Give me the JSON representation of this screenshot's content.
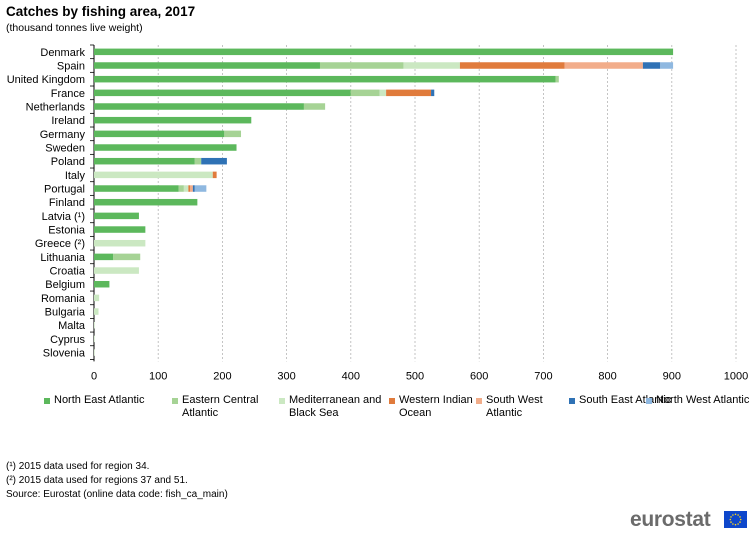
{
  "title": "Catches by fishing area, 2017",
  "subtitle": "(thousand tonnes live weight)",
  "legend": [
    {
      "label": "North East Atlantic",
      "color": "#5cb85c"
    },
    {
      "label": "Eastern Central Atlantic",
      "color": "#a6d395"
    },
    {
      "label": "Mediterranean and Black Sea",
      "color": "#cbe8c2"
    },
    {
      "label": "Western Indian Ocean",
      "color": "#e07b3c"
    },
    {
      "label": "South West Atlantic",
      "color": "#f2ad8a"
    },
    {
      "label": "South East Atlantic",
      "color": "#2f72b5"
    },
    {
      "label": "North West Atlantic",
      "color": "#8fb8e0"
    }
  ],
  "notes": [
    "(¹) 2015 data used for region 34.",
    "(²) 2015 data used for regions 37 and 51.",
    "Source: Eurostat (online data code: fish_ca_main)"
  ],
  "logo": {
    "text": "eurostat",
    "icon": "eu-flag-icon"
  },
  "chart_data": {
    "type": "bar",
    "orientation": "horizontal",
    "stacked": true,
    "title": "Catches by fishing area, 2017",
    "subtitle": "(thousand tonnes live weight)",
    "xlim": [
      0,
      1000
    ],
    "xticks": [
      0,
      100,
      200,
      300,
      400,
      500,
      600,
      700,
      800,
      900,
      1000
    ],
    "grid": "vertical dashed",
    "legend_position": "bottom",
    "categories": [
      "Denmark",
      "Spain",
      "United Kingdom",
      "France",
      "Netherlands",
      "Ireland",
      "Germany",
      "Sweden",
      "Poland",
      "Italy",
      "Portugal",
      "Finland",
      "Latvia (¹)",
      "Estonia",
      "Greece (²)",
      "Lithuania",
      "Croatia",
      "Belgium",
      "Romania",
      "Bulgaria",
      "Malta",
      "Cyprus",
      "Slovenia"
    ],
    "series": [
      {
        "name": "North East Atlantic",
        "color": "#5cb85c",
        "values": [
          902,
          352,
          719,
          400,
          327,
          245,
          203,
          222,
          157,
          0,
          132,
          161,
          70,
          80,
          0,
          30,
          0,
          24,
          0,
          0,
          0,
          0,
          0
        ]
      },
      {
        "name": "Eastern Central Atlantic",
        "color": "#a6d395",
        "values": [
          0,
          130,
          5,
          45,
          33,
          0,
          26,
          0,
          10,
          0,
          8,
          0,
          0,
          0,
          0,
          42,
          0,
          0,
          0,
          0,
          0,
          0,
          0
        ]
      },
      {
        "name": "Mediterranean and Black Sea",
        "color": "#cbe8c2",
        "values": [
          0,
          88,
          0,
          10,
          0,
          0,
          0,
          0,
          0,
          185,
          7,
          0,
          0,
          0,
          80,
          0,
          70,
          0,
          8,
          7,
          1,
          1,
          1
        ]
      },
      {
        "name": "Western Indian Ocean",
        "color": "#e07b3c",
        "values": [
          0,
          163,
          0,
          70,
          0,
          0,
          0,
          0,
          0,
          6,
          3,
          0,
          0,
          0,
          0,
          0,
          0,
          0,
          0,
          0,
          0,
          0,
          0
        ]
      },
      {
        "name": "South West Atlantic",
        "color": "#f2ad8a",
        "values": [
          0,
          122,
          0,
          0,
          0,
          0,
          0,
          0,
          0,
          0,
          4,
          0,
          0,
          0,
          0,
          0,
          0,
          0,
          0,
          0,
          0,
          0,
          0
        ]
      },
      {
        "name": "South East Atlantic",
        "color": "#2f72b5",
        "values": [
          0,
          27,
          0,
          5,
          0,
          0,
          0,
          0,
          40,
          0,
          3,
          0,
          0,
          0,
          0,
          0,
          0,
          0,
          0,
          0,
          0,
          0,
          0
        ]
      },
      {
        "name": "North West Atlantic",
        "color": "#8fb8e0",
        "values": [
          0,
          20,
          0,
          0,
          0,
          0,
          0,
          0,
          0,
          0,
          18,
          0,
          0,
          0,
          0,
          0,
          0,
          0,
          0,
          0,
          0,
          0,
          0
        ]
      }
    ]
  }
}
